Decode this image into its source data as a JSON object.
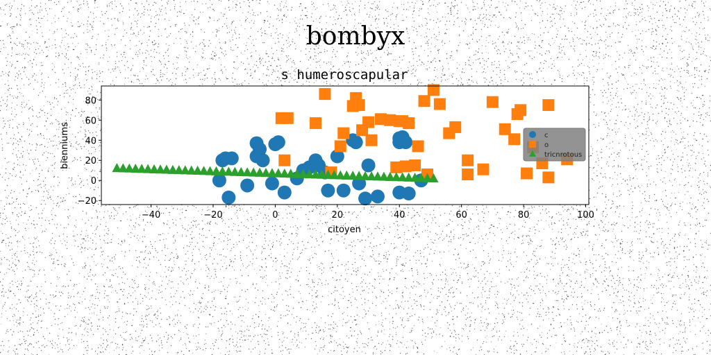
{
  "figure": {
    "suptitle": "bombyx"
  },
  "chart_data": {
    "type": "scatter",
    "title": "s humeroscapular",
    "xlabel": "citoyen",
    "ylabel": "bienniums",
    "xlim": [
      -56,
      101
    ],
    "ylim": [
      -24,
      94
    ],
    "xticks": [
      -40,
      -20,
      0,
      20,
      40,
      60,
      80,
      100
    ],
    "xtick_labels": [
      "−40",
      "−20",
      "0",
      "20",
      "40",
      "60",
      "80",
      "100"
    ],
    "yticks": [
      -20,
      0,
      20,
      40,
      60,
      80
    ],
    "ytick_labels": [
      "−20",
      "0",
      "20",
      "40",
      "60",
      "80"
    ],
    "grid": false,
    "legend_position": "right",
    "series": [
      {
        "name": "c",
        "marker": "circle",
        "color": "#1f77b4",
        "x": [
          -18,
          -17,
          -16,
          -14,
          -15,
          -6,
          -6,
          -5,
          -4,
          -9,
          -1,
          0,
          1,
          3,
          7,
          9,
          11,
          13,
          14,
          16,
          17,
          20,
          22,
          25,
          26,
          27,
          29,
          30,
          33,
          40,
          40,
          41,
          42,
          40,
          43,
          47
        ],
        "y": [
          0,
          20,
          22,
          22,
          -17,
          37,
          24,
          31,
          20,
          -5,
          -3,
          36,
          38,
          -12,
          2,
          10,
          13,
          20,
          15,
          8,
          -10,
          24,
          -10,
          40,
          38,
          -3,
          -18,
          15,
          -16,
          38,
          42,
          43,
          38,
          -12,
          -13,
          0
        ]
      },
      {
        "name": "o",
        "marker": "square",
        "color": "#ff7f0e",
        "x": [
          2,
          4,
          3,
          13,
          16,
          18,
          21,
          22,
          25,
          26,
          27,
          28,
          30,
          31,
          34,
          37,
          39,
          40,
          41,
          42,
          43,
          45,
          46,
          48,
          49,
          51,
          53,
          56,
          58,
          62,
          62,
          67,
          70,
          74,
          77,
          78,
          79,
          81,
          83,
          86,
          88,
          88,
          94
        ],
        "y": [
          62,
          62,
          20,
          57,
          86,
          8,
          34,
          47,
          74,
          82,
          75,
          50,
          58,
          40,
          61,
          60,
          13,
          59,
          59,
          14,
          57,
          15,
          34,
          79,
          6,
          90,
          76,
          47,
          53,
          6,
          20,
          11,
          78,
          51,
          41,
          66,
          70,
          7,
          33,
          17,
          3,
          75,
          21
        ]
      },
      {
        "name": "tricnrotous",
        "marker": "triangle",
        "color": "#2ca02c",
        "x": [
          -51,
          -49,
          -47,
          -45,
          -43,
          -41,
          -39,
          -37,
          -35,
          -33,
          -31,
          -29,
          -27,
          -25,
          -23,
          -21,
          -19,
          -17,
          -15,
          -13,
          -11,
          -9,
          -7,
          -5,
          -3,
          -1,
          1,
          3,
          5,
          7,
          9,
          11,
          13,
          15,
          17,
          19,
          21,
          23,
          25,
          27,
          29,
          31,
          33,
          35,
          37,
          39,
          41,
          43,
          45,
          47,
          49,
          51
        ],
        "y": [
          12,
          11.8,
          11.6,
          11.4,
          11.2,
          11.0,
          10.8,
          10.6,
          10.4,
          10.2,
          10.0,
          9.8,
          9.6,
          9.4,
          9.2,
          9.0,
          8.8,
          8.6,
          8.4,
          8.2,
          8.0,
          7.8,
          7.6,
          7.4,
          7.2,
          7.0,
          6.8,
          6.6,
          6.4,
          6.2,
          6.0,
          5.8,
          5.6,
          5.4,
          5.2,
          5.0,
          4.8,
          4.6,
          4.4,
          4.2,
          4.0,
          3.8,
          3.6,
          3.4,
          3.2,
          3.0,
          2.8,
          2.6,
          2.4,
          2.2,
          2.0,
          1.8
        ]
      }
    ]
  }
}
